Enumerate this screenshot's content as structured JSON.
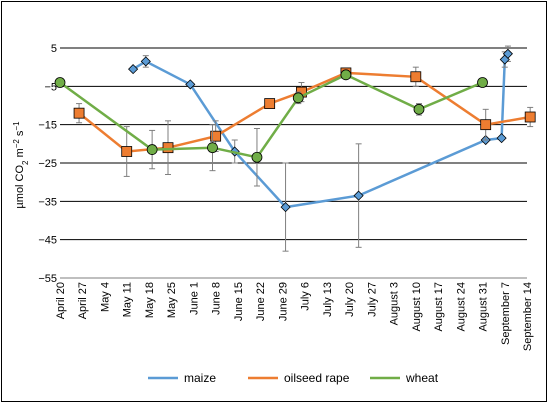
{
  "chart_data": {
    "type": "line",
    "ylabel": "µmol CO₂ m⁻² s⁻¹",
    "ylim": [
      -55,
      5
    ],
    "yticks": [
      5,
      -5,
      -15,
      -25,
      -35,
      -45,
      -55
    ],
    "grid": "horizontal",
    "legend_position": "bottom",
    "xticks": [
      "April 20",
      "April 27",
      "May 4",
      "May 11",
      "May 18",
      "May 25",
      "June 1",
      "June 8",
      "June 15",
      "June 22",
      "June 29",
      "July 6",
      "July 13",
      "July 20",
      "July 27",
      "August 3",
      "August 10",
      "August 17",
      "August 24",
      "August 31",
      "September 7",
      "September 14"
    ],
    "series": [
      {
        "name": "maize",
        "color": "#5b9bd5",
        "marker": "diamond",
        "points": [
          {
            "x": "May 13",
            "y": -0.5,
            "err": 0
          },
          {
            "x": "May 17",
            "y": 1.5,
            "err": 1.5
          },
          {
            "x": "May 31",
            "y": -4.5,
            "err": 0
          },
          {
            "x": "June 14",
            "y": -22,
            "err": 3
          },
          {
            "x": "June 30",
            "y": -36.5,
            "err": 11.5
          },
          {
            "x": "July 23",
            "y": -33.5,
            "err": 13.5
          },
          {
            "x": "September 1",
            "y": -19,
            "err": 0
          },
          {
            "x": "September 6",
            "y": -18.5,
            "err": 0
          },
          {
            "x": "September 7",
            "y": 2,
            "err": 2
          },
          {
            "x": "September 8",
            "y": 3.5,
            "err": 2
          }
        ]
      },
      {
        "name": "oilseed rape",
        "color": "#ed7d31",
        "marker": "square",
        "points": [
          {
            "x": "April 26",
            "y": -12,
            "err": 2.5
          },
          {
            "x": "May 11",
            "y": -22,
            "err": 6.5
          },
          {
            "x": "May 24",
            "y": -21,
            "err": 7
          },
          {
            "x": "June 8",
            "y": -18,
            "err": 4
          },
          {
            "x": "June 25",
            "y": -9.5,
            "err": 0
          },
          {
            "x": "July 5",
            "y": -6.5,
            "err": 2.5
          },
          {
            "x": "July 19",
            "y": -1.5,
            "err": 0
          },
          {
            "x": "August 10",
            "y": -2.5,
            "err": 2.5
          },
          {
            "x": "September 1",
            "y": -15,
            "err": 4
          },
          {
            "x": "September 15",
            "y": -13,
            "err": 2.5
          }
        ]
      },
      {
        "name": "wheat",
        "color": "#70ad47",
        "marker": "circle",
        "points": [
          {
            "x": "April 20",
            "y": -4,
            "err": 0
          },
          {
            "x": "May 19",
            "y": -21.5,
            "err": 5
          },
          {
            "x": "June 7",
            "y": -21,
            "err": 6
          },
          {
            "x": "June 21",
            "y": -23.5,
            "err": 7.5
          },
          {
            "x": "July 4",
            "y": -8,
            "err": 1.5
          },
          {
            "x": "July 19",
            "y": -2,
            "err": 0
          },
          {
            "x": "August 11",
            "y": -11,
            "err": 1.5
          },
          {
            "x": "August 31",
            "y": -4,
            "err": 0
          }
        ]
      }
    ]
  }
}
